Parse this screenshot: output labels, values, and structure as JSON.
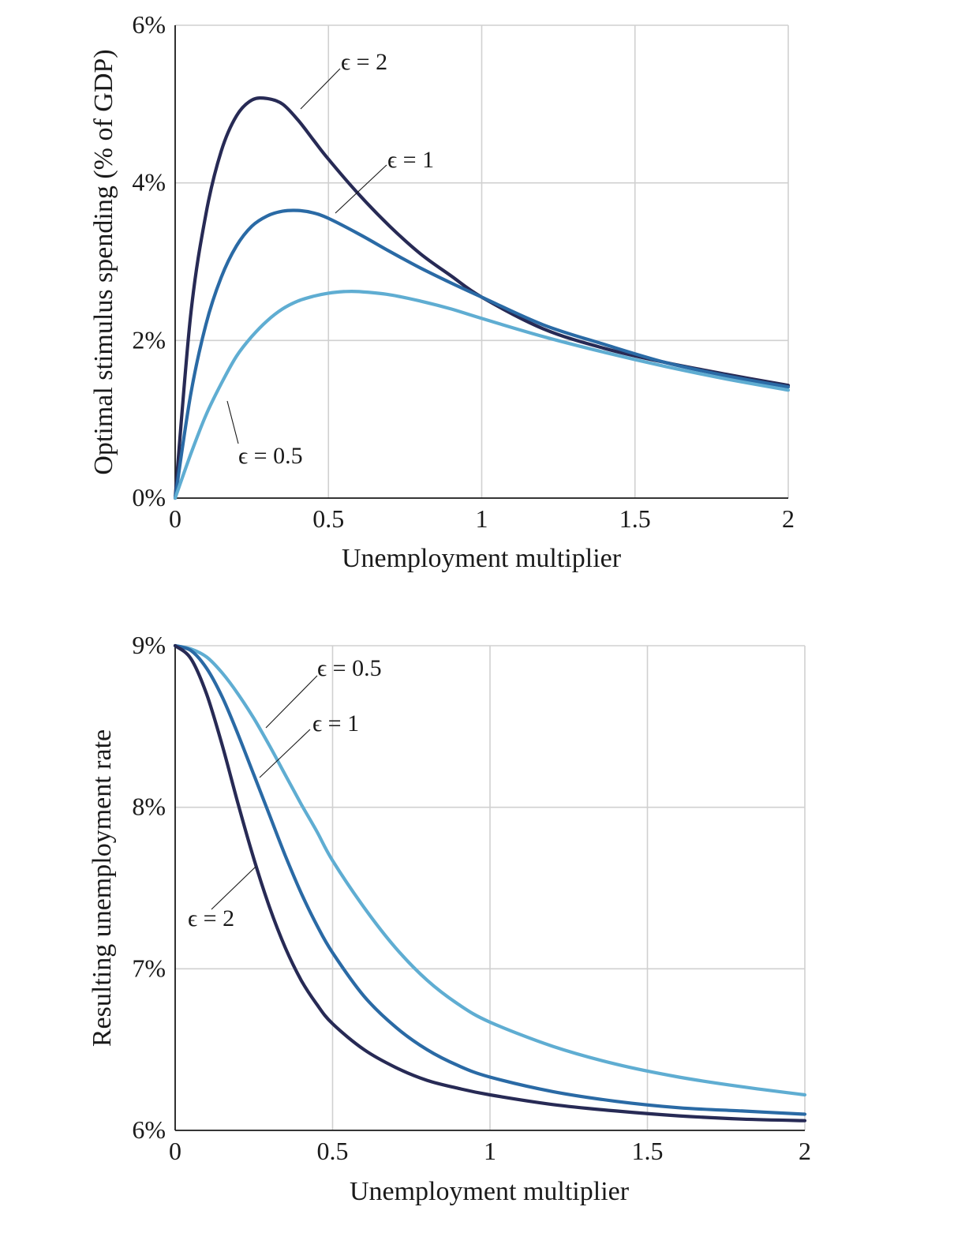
{
  "colors": {
    "eps_2": "#272a55",
    "eps_1": "#2a6aa5",
    "eps_0_5": "#5fadd2",
    "grid": "#d0d0d0"
  },
  "chart_data": [
    {
      "type": "line",
      "xlabel": "Unemployment multiplier",
      "ylabel": "Optimal stimulus spending (% of GDP)",
      "xlim": [
        0,
        2
      ],
      "ylim": [
        0,
        6
      ],
      "x_ticks": [
        0,
        0.5,
        1,
        1.5,
        2
      ],
      "x_tick_labels": [
        "0",
        "0.5",
        "1",
        "1.5",
        "2"
      ],
      "y_ticks": [
        0,
        2,
        4,
        6
      ],
      "y_tick_labels": [
        "0%",
        "2%",
        "4%",
        "6%"
      ],
      "grid": true,
      "series": [
        {
          "name": "ϵ = 2",
          "color_key": "eps_2",
          "x": [
            0,
            0.05,
            0.1,
            0.15,
            0.2,
            0.25,
            0.3,
            0.35,
            0.4,
            0.45,
            0.5,
            0.6,
            0.7,
            0.8,
            0.9,
            1.0,
            1.2,
            1.4,
            1.6,
            1.8,
            2.0
          ],
          "y": [
            0,
            2.3,
            3.6,
            4.4,
            4.85,
            5.05,
            5.07,
            5.0,
            4.8,
            4.55,
            4.3,
            3.85,
            3.45,
            3.1,
            2.82,
            2.55,
            2.15,
            1.9,
            1.72,
            1.57,
            1.43
          ]
        },
        {
          "name": "ϵ = 1",
          "color_key": "eps_1",
          "x": [
            0,
            0.05,
            0.1,
            0.15,
            0.2,
            0.25,
            0.3,
            0.35,
            0.4,
            0.45,
            0.5,
            0.6,
            0.7,
            0.8,
            0.9,
            1.0,
            1.2,
            1.4,
            1.6,
            1.8,
            2.0
          ],
          "y": [
            0,
            1.3,
            2.2,
            2.8,
            3.2,
            3.45,
            3.58,
            3.64,
            3.65,
            3.62,
            3.55,
            3.35,
            3.13,
            2.92,
            2.73,
            2.55,
            2.2,
            1.95,
            1.72,
            1.55,
            1.41
          ]
        },
        {
          "name": "ϵ = 0.5",
          "color_key": "eps_0_5",
          "x": [
            0,
            0.05,
            0.1,
            0.15,
            0.2,
            0.25,
            0.3,
            0.35,
            0.4,
            0.45,
            0.5,
            0.55,
            0.6,
            0.7,
            0.8,
            0.9,
            1.0,
            1.2,
            1.4,
            1.6,
            1.8,
            2.0
          ],
          "y": [
            0,
            0.55,
            1.05,
            1.45,
            1.8,
            2.05,
            2.25,
            2.4,
            2.5,
            2.56,
            2.6,
            2.62,
            2.62,
            2.58,
            2.5,
            2.4,
            2.28,
            2.05,
            1.85,
            1.67,
            1.51,
            1.37
          ]
        }
      ],
      "annotations": [
        {
          "text": "ϵ = 2",
          "series": "ϵ = 2"
        },
        {
          "text": "ϵ = 1",
          "series": "ϵ = 1"
        },
        {
          "text": "ϵ = 0.5",
          "series": "ϵ = 0.5"
        }
      ]
    },
    {
      "type": "line",
      "xlabel": "Unemployment multiplier",
      "ylabel": "Resulting unemployment rate",
      "xlim": [
        0,
        2
      ],
      "ylim": [
        6,
        9
      ],
      "x_ticks": [
        0,
        0.5,
        1,
        1.5,
        2
      ],
      "x_tick_labels": [
        "0",
        "0.5",
        "1",
        "1.5",
        "2"
      ],
      "y_ticks": [
        6,
        7,
        8,
        9
      ],
      "y_tick_labels": [
        "6%",
        "7%",
        "8%",
        "9%"
      ],
      "grid": true,
      "series": [
        {
          "name": "ϵ = 0.5",
          "color_key": "eps_0_5",
          "x": [
            0,
            0.05,
            0.1,
            0.15,
            0.2,
            0.25,
            0.3,
            0.35,
            0.4,
            0.45,
            0.5,
            0.6,
            0.7,
            0.8,
            0.9,
            1.0,
            1.2,
            1.4,
            1.6,
            1.8,
            2.0
          ],
          "y": [
            9.0,
            8.98,
            8.93,
            8.83,
            8.7,
            8.55,
            8.38,
            8.2,
            8.02,
            7.85,
            7.67,
            7.38,
            7.13,
            6.93,
            6.78,
            6.67,
            6.52,
            6.41,
            6.33,
            6.27,
            6.22
          ]
        },
        {
          "name": "ϵ = 1",
          "color_key": "eps_1",
          "x": [
            0,
            0.05,
            0.1,
            0.15,
            0.2,
            0.25,
            0.3,
            0.35,
            0.4,
            0.45,
            0.5,
            0.6,
            0.7,
            0.8,
            0.9,
            1.0,
            1.2,
            1.4,
            1.6,
            1.8,
            2.0
          ],
          "y": [
            9.0,
            8.97,
            8.86,
            8.68,
            8.45,
            8.2,
            7.95,
            7.7,
            7.47,
            7.27,
            7.1,
            6.83,
            6.64,
            6.5,
            6.4,
            6.33,
            6.24,
            6.18,
            6.14,
            6.12,
            6.1
          ]
        },
        {
          "name": "ϵ = 2",
          "color_key": "eps_2",
          "x": [
            0,
            0.05,
            0.1,
            0.15,
            0.2,
            0.25,
            0.3,
            0.35,
            0.4,
            0.45,
            0.5,
            0.6,
            0.7,
            0.8,
            0.9,
            1.0,
            1.2,
            1.4,
            1.6,
            1.8,
            2.0
          ],
          "y": [
            9.0,
            8.92,
            8.7,
            8.38,
            8.02,
            7.68,
            7.38,
            7.13,
            6.93,
            6.78,
            6.66,
            6.5,
            6.39,
            6.31,
            6.26,
            6.22,
            6.16,
            6.12,
            6.09,
            6.07,
            6.06
          ]
        }
      ],
      "annotations": [
        {
          "text": "ϵ = 0.5",
          "series": "ϵ = 0.5"
        },
        {
          "text": "ϵ = 1",
          "series": "ϵ = 1"
        },
        {
          "text": "ϵ = 2",
          "series": "ϵ = 2"
        }
      ]
    }
  ]
}
